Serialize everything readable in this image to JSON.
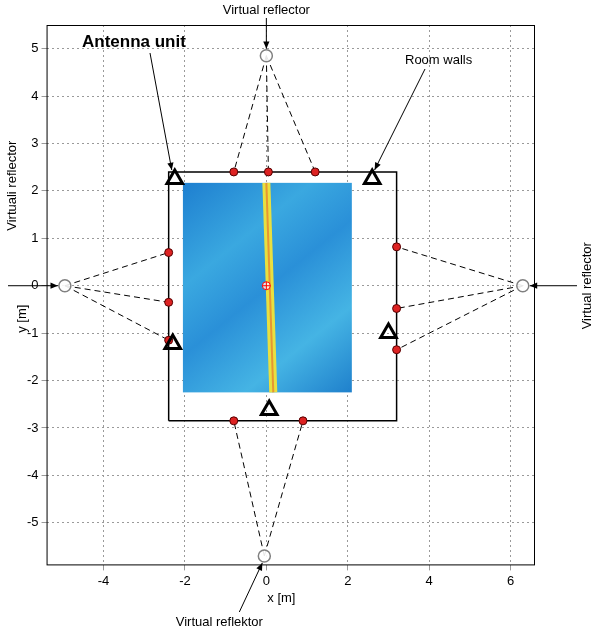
{
  "chart_data": {
    "type": "scatter",
    "x_label": "x [m]",
    "y_label": "y [m]",
    "xlim": [
      -5.4,
      6.6
    ],
    "xticks": [
      -4,
      -2,
      0,
      2,
      4,
      6
    ],
    "ylim": [
      -5.9,
      5.5
    ],
    "yticks": [
      -5,
      -4,
      -3,
      -2,
      -1,
      0,
      1,
      2,
      3,
      4,
      5
    ],
    "grid": true,
    "heat_map": {
      "x": [
        -2.05,
        2.1
      ],
      "y": [
        -2.25,
        2.17
      ],
      "ridge": {
        "x": [
          0.17,
          0.0
        ],
        "y": [
          -2.25,
          2.17
        ],
        "color": "#e8e040"
      }
    },
    "room": {
      "label": "Room walls",
      "x": [
        -2.4,
        3.2
      ],
      "y": [
        -2.85,
        2.4
      ],
      "color": "#000000"
    },
    "antennas": {
      "label": "Antenna unit",
      "x": [
        -2.25,
        2.6,
        -2.3,
        3.0,
        0.07
      ],
      "y": [
        2.25,
        2.25,
        -1.23,
        -1.0,
        -2.62
      ],
      "marker": "triangle",
      "color": "#000000"
    },
    "target": {
      "x": [
        0
      ],
      "y": [
        0
      ],
      "marker": "crossed_circle",
      "color": "#ff0000"
    },
    "reflectors": [
      {
        "label": "Virtual reflector",
        "x": 0,
        "y": 4.85,
        "marker": "circle",
        "color": "#808080",
        "line_style": "dashed",
        "wall_points": {
          "x": [
            -0.8,
            0.05,
            1.2
          ],
          "y": [
            2.4,
            2.4,
            2.4
          ],
          "color": "#dd2222"
        }
      },
      {
        "label": "Virtuali reflector",
        "x": -4.95,
        "y": 0,
        "marker": "circle",
        "color": "#808080",
        "line_style": "dashed",
        "wall_points": {
          "x": [
            -2.4,
            -2.4,
            -2.4
          ],
          "y": [
            0.7,
            -0.35,
            -1.15
          ],
          "color": "#dd2222"
        }
      },
      {
        "label": "Virtual reflector",
        "x": 6.3,
        "y": 0,
        "marker": "circle",
        "color": "#808080",
        "line_style": "dashed",
        "wall_points": {
          "x": [
            3.2,
            3.2,
            3.2
          ],
          "y": [
            0.82,
            -0.48,
            -1.35
          ],
          "color": "#dd2222"
        }
      },
      {
        "label": "Virtual reflektor",
        "x": -0.05,
        "y": -5.7,
        "marker": "circle",
        "color": "#808080",
        "line_style": "dashed",
        "wall_points": {
          "x": [
            -0.8,
            0.9
          ],
          "y": [
            -2.85,
            -2.85
          ],
          "color": "#dd2222"
        }
      }
    ]
  }
}
